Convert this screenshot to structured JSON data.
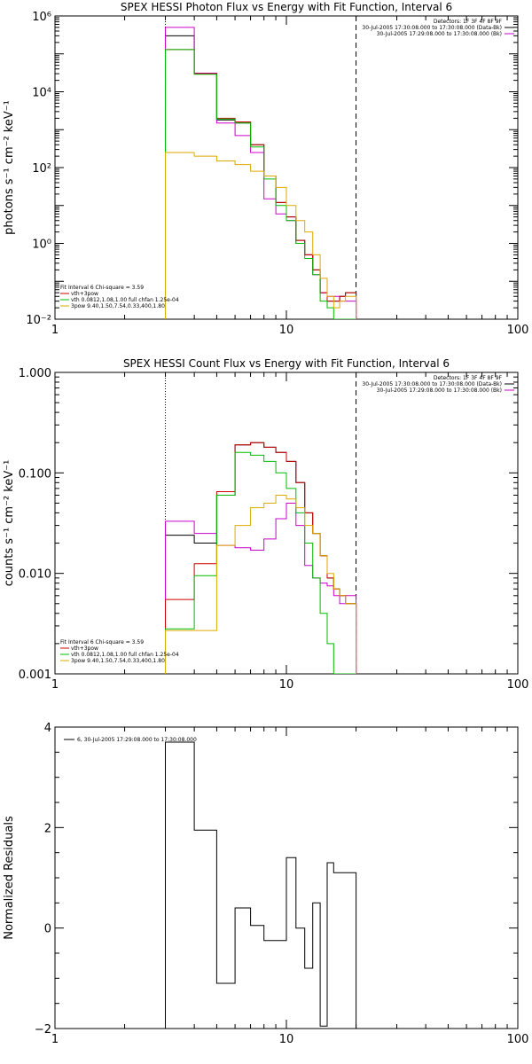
{
  "chart_data": [
    {
      "type": "line",
      "title": "SPEX HESSI Photon Flux vs Energy with Fit Function, Interval 6",
      "ylabel": "photons s⁻¹ cm⁻² keV⁻¹",
      "xlabel": "",
      "xscale": "log",
      "yscale": "log",
      "xlim": [
        1,
        100
      ],
      "ylim": [
        0.01,
        1000000
      ],
      "x_ticks": [
        {
          "v": 1,
          "label": "1"
        },
        {
          "v": 10,
          "label": "10"
        },
        {
          "v": 100,
          "label": "100"
        }
      ],
      "y_ticks": [
        {
          "v": 0.01,
          "label": "10⁻²"
        },
        {
          "v": 1,
          "label": "10⁰"
        },
        {
          "v": 100,
          "label": "10²"
        },
        {
          "v": 10000,
          "label": "10⁴"
        },
        {
          "v": 1000000,
          "label": "10⁶"
        }
      ],
      "vlines": [
        {
          "x": 3,
          "style": "dotted"
        },
        {
          "x": 20,
          "style": "dashed"
        }
      ],
      "edges": [
        3,
        4,
        5,
        6,
        7,
        8,
        9,
        10,
        11,
        12,
        13,
        14,
        15,
        16,
        17,
        18,
        20
      ],
      "header_lines": [
        "Detectors: 1F 3F 4F 8F 9F",
        "30-Jul-2005 17:30:08.000 to 17:30:08.000 (Data-Bk)",
        "30-Jul-2005 17:29:08.000 to 17:30:08.000 (Bk)"
      ],
      "header_colors": [
        "",
        "#000000",
        "#cc00cc"
      ],
      "stats_lines": [
        "Fit Interval 6   Chi-square = 3.59",
        "vth+3pow",
        "vth 0.0812,1.08,1.00  full chfan 1.25e-04",
        "3pow 9.40,1.50,7.54,0.33,400,1.80"
      ],
      "stats_colors": [
        "#000000",
        "#cc0000",
        "#00bb00",
        "#ddaa00"
      ],
      "series": [
        {
          "color": "#000000",
          "values": [
            300000,
            30000,
            1800,
            1500,
            400,
            60,
            12,
            5,
            1.2,
            0.5,
            0.2,
            0.05,
            0.03,
            0.03,
            0.04,
            0.05
          ]
        },
        {
          "color": "#cc00cc",
          "values": [
            500000,
            31000,
            1500,
            700,
            250,
            15,
            6,
            4,
            1,
            0.5,
            0.15,
            0.05,
            0.04,
            0.04,
            0.03,
            0.03
          ]
        },
        {
          "color": "#cc0000",
          "values": [
            130000,
            30000,
            2000,
            1600,
            400,
            60,
            12,
            5,
            1.2,
            0.5,
            0.2,
            0.05,
            0.03,
            0.03,
            0.04,
            0.05
          ]
        },
        {
          "color": "#00bb00",
          "values": [
            130000,
            29000,
            1900,
            1500,
            350,
            50,
            10,
            4,
            1,
            0.4,
            0.15,
            0.03,
            0.02,
            0.01,
            0.007,
            0.005
          ]
        },
        {
          "color": "#ddaa00",
          "values": [
            250,
            200,
            150,
            120,
            80,
            60,
            30,
            10,
            4,
            2,
            0.5,
            0.12,
            0.04,
            0.02,
            0.03,
            0.04
          ]
        }
      ]
    },
    {
      "type": "line",
      "title": "SPEX HESSI Count Flux vs Energy with Fit Function, Interval 6",
      "ylabel": "counts s⁻¹ cm⁻² keV⁻¹",
      "xlabel": "",
      "xscale": "log",
      "yscale": "log",
      "xlim": [
        1,
        100
      ],
      "ylim": [
        0.001,
        1
      ],
      "x_ticks": [
        {
          "v": 1,
          "label": "1"
        },
        {
          "v": 10,
          "label": "10"
        },
        {
          "v": 100,
          "label": "100"
        }
      ],
      "y_ticks": [
        {
          "v": 0.001,
          "label": "0.001"
        },
        {
          "v": 0.01,
          "label": "0.010"
        },
        {
          "v": 0.1,
          "label": "0.100"
        },
        {
          "v": 1,
          "label": "1.000"
        }
      ],
      "vlines": [
        {
          "x": 3,
          "style": "dotted"
        },
        {
          "x": 20,
          "style": "dashed"
        }
      ],
      "edges": [
        3,
        4,
        5,
        6,
        7,
        8,
        9,
        10,
        11,
        12,
        13,
        14,
        15,
        16,
        17,
        18,
        20
      ],
      "header_lines": [
        "Detectors: 1F 3F 4F 8F 9F",
        "30-Jul-2005 17:30:08.000 to 17:30:08.000 (Data-Bk)",
        "30-Jul-2005 17:29:08.000 to 17:30:08.000 (Bk)"
      ],
      "header_colors": [
        "",
        "#000000",
        "#cc00cc"
      ],
      "stats_lines": [
        "Fit Interval 6   Chi-square = 3.59",
        "vth+3pow",
        "vth 0.0812,1.08,1.00  full chfan 1.25e-04",
        "3pow 9.40,1.50,7.54,0.33,400,1.80"
      ],
      "stats_colors": [
        "#000000",
        "#cc0000",
        "#00bb00",
        "#ddaa00"
      ],
      "series": [
        {
          "color": "#000000",
          "values": [
            0.024,
            0.02,
            0.06,
            0.19,
            0.2,
            0.18,
            0.16,
            0.13,
            0.08,
            0.04,
            0.025,
            0.015,
            0.009,
            0.007,
            0.006,
            0.005
          ]
        },
        {
          "color": "#cc00cc",
          "values": [
            0.033,
            0.025,
            0.019,
            0.018,
            0.017,
            0.022,
            0.035,
            0.05,
            0.03,
            0.012,
            0.009,
            0.008,
            0.0075,
            0.006,
            0.005,
            0.006
          ]
        },
        {
          "color": "#cc0000",
          "values": [
            0.0055,
            0.0125,
            0.065,
            0.19,
            0.2,
            0.18,
            0.16,
            0.13,
            0.08,
            0.04,
            0.025,
            0.015,
            0.009,
            0.007,
            0.006,
            0.005
          ]
        },
        {
          "color": "#00bb00",
          "values": [
            0.0028,
            0.0095,
            0.06,
            0.16,
            0.15,
            0.13,
            0.1,
            0.07,
            0.04,
            0.02,
            0.009,
            0.004,
            0.002,
            0.001,
            0.001,
            0.001
          ]
        },
        {
          "color": "#ddaa00",
          "values": [
            0.0027,
            0.0027,
            0.019,
            0.03,
            0.045,
            0.05,
            0.06,
            0.055,
            0.045,
            0.03,
            0.025,
            0.015,
            0.01,
            0.007,
            0.006,
            0.005
          ]
        }
      ]
    },
    {
      "type": "line",
      "title": "",
      "ylabel": "Normalized Residuals",
      "xlabel": "",
      "xscale": "log",
      "yscale": "linear",
      "xlim": [
        1,
        100
      ],
      "ylim": [
        -2,
        4
      ],
      "x_ticks": [
        {
          "v": 1,
          "label": "1"
        },
        {
          "v": 10,
          "label": "10"
        },
        {
          "v": 100,
          "label": "100"
        }
      ],
      "y_ticks": [
        {
          "v": -2,
          "label": "−2"
        },
        {
          "v": 0,
          "label": "0"
        },
        {
          "v": 2,
          "label": "2"
        },
        {
          "v": 4,
          "label": "4"
        }
      ],
      "legend": "6, 30-Jul-2005 17:29:08.000 to 17:30:08.000",
      "edges": [
        3,
        4,
        5,
        6,
        7,
        8,
        9,
        10,
        11,
        12,
        13,
        14,
        15,
        16,
        17,
        18,
        20
      ],
      "series": [
        {
          "color": "#000000",
          "values": [
            3.7,
            1.95,
            -1.1,
            0.4,
            0.05,
            -0.25,
            -0.25,
            1.4,
            0.0,
            -0.8,
            0.5,
            -1.95,
            1.3,
            1.1,
            1.1,
            1.1
          ]
        }
      ]
    }
  ]
}
